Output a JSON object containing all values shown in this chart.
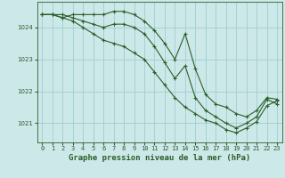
{
  "title": "Graphe pression niveau de la mer (hPa)",
  "bg_color": "#cde8e8",
  "grid_color": "#9ecece",
  "line_color": "#2a5e2a",
  "series": [
    {
      "x": [
        0,
        1,
        2,
        3,
        4,
        5,
        6,
        7,
        8,
        9,
        10,
        11,
        12,
        13,
        14,
        15,
        16,
        17,
        18,
        19,
        20,
        21,
        22,
        23
      ],
      "y": [
        1024.4,
        1024.4,
        1024.3,
        1024.4,
        1024.4,
        1024.4,
        1024.4,
        1024.5,
        1024.5,
        1024.4,
        1024.2,
        1023.9,
        1023.5,
        1023.0,
        1023.8,
        1022.7,
        1021.9,
        1021.6,
        1021.5,
        1021.3,
        1021.2,
        1021.4,
        1021.8,
        1021.75
      ]
    },
    {
      "x": [
        0,
        1,
        2,
        3,
        4,
        5,
        6,
        7,
        8,
        9,
        10,
        11,
        12,
        13,
        14,
        15,
        16,
        17,
        18,
        19,
        20,
        21,
        22,
        23
      ],
      "y": [
        1024.4,
        1024.4,
        1024.4,
        1024.3,
        1024.2,
        1024.1,
        1024.0,
        1024.1,
        1024.1,
        1024.0,
        1023.8,
        1023.4,
        1022.9,
        1022.4,
        1022.8,
        1021.8,
        1021.4,
        1021.2,
        1021.0,
        1020.85,
        1021.0,
        1021.2,
        1021.75,
        1021.6
      ]
    },
    {
      "x": [
        0,
        1,
        2,
        3,
        4,
        5,
        6,
        7,
        8,
        9,
        10,
        11,
        12,
        13,
        14,
        15,
        16,
        17,
        18,
        19,
        20,
        21,
        22,
        23
      ],
      "y": [
        1024.4,
        1024.4,
        1024.3,
        1024.2,
        1024.0,
        1023.8,
        1023.6,
        1023.5,
        1023.4,
        1023.2,
        1023.0,
        1022.6,
        1022.2,
        1021.8,
        1021.5,
        1021.3,
        1021.1,
        1021.0,
        1020.8,
        1020.7,
        1020.85,
        1021.05,
        1021.55,
        1021.7
      ]
    }
  ],
  "ylim": [
    1020.4,
    1024.8
  ],
  "yticks": [
    1021,
    1022,
    1023,
    1024
  ],
  "xtick_labels": [
    "0",
    "1",
    "2",
    "3",
    "4",
    "5",
    "6",
    "7",
    "8",
    "9",
    "10",
    "11",
    "12",
    "13",
    "14",
    "15",
    "16",
    "17",
    "18",
    "19",
    "20",
    "21",
    "22",
    "23"
  ],
  "tick_fontsize": 5.0,
  "title_fontsize": 6.5,
  "marker": "+",
  "marker_size": 3.5,
  "line_width": 0.8
}
